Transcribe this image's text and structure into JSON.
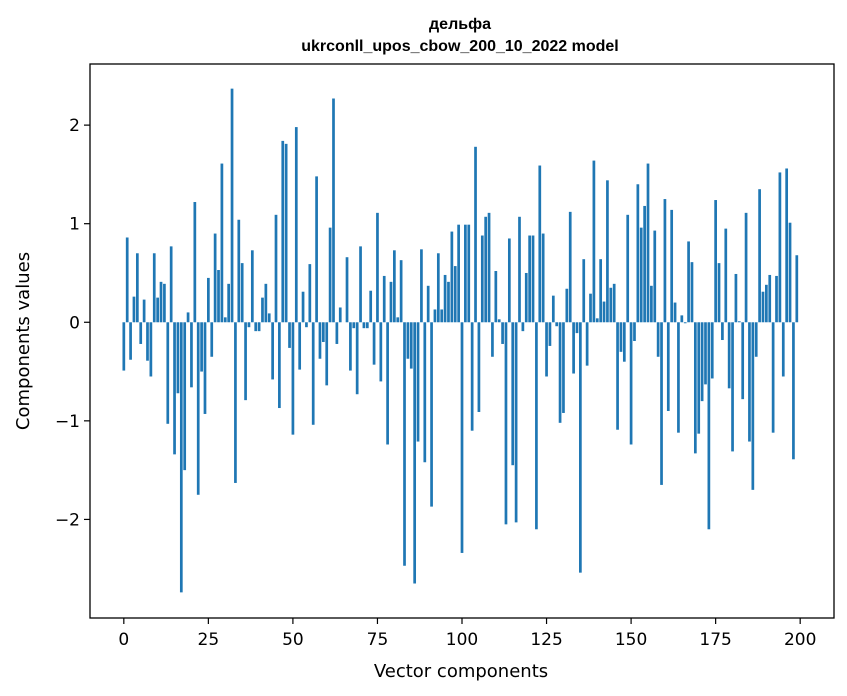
{
  "chart_data": {
    "type": "bar",
    "title": "дельфа",
    "subtitle": "ukrconll_upos_cbow_200_10_2022 model",
    "xlabel": "Vector components",
    "ylabel": "Components values",
    "xlim": [
      -10,
      210
    ],
    "ylim": [
      -3.0,
      2.62
    ],
    "xticks": [
      0,
      25,
      50,
      75,
      100,
      125,
      150,
      175,
      200
    ],
    "yticks": [
      -2,
      -1,
      0,
      1,
      2
    ],
    "ytick_labels": [
      "−2",
      "−1",
      "0",
      "1",
      "2"
    ],
    "grid": false,
    "bar_color": "#1f77b4",
    "values": [
      -0.49,
      0.86,
      -0.38,
      0.26,
      0.7,
      -0.22,
      0.23,
      -0.39,
      -0.55,
      0.7,
      0.25,
      0.41,
      0.39,
      -1.03,
      0.77,
      -1.34,
      -0.72,
      -2.74,
      -1.5,
      0.1,
      -0.66,
      1.22,
      -1.75,
      -0.5,
      -0.93,
      0.45,
      -0.35,
      0.9,
      0.53,
      1.61,
      0.05,
      0.39,
      2.37,
      -1.63,
      1.04,
      0.6,
      -0.79,
      -0.05,
      0.73,
      -0.09,
      -0.09,
      0.25,
      0.39,
      0.09,
      -0.58,
      1.09,
      -0.87,
      1.84,
      1.81,
      -0.26,
      -1.14,
      1.98,
      -0.48,
      0.31,
      -0.05,
      0.59,
      -1.04,
      1.48,
      -0.37,
      -0.2,
      -0.64,
      0.96,
      2.27,
      -0.22,
      0.15,
      0.0,
      0.66,
      -0.49,
      -0.06,
      -0.73,
      0.77,
      -0.06,
      -0.06,
      0.32,
      -0.43,
      1.11,
      -0.6,
      0.47,
      -1.24,
      0.41,
      0.73,
      0.05,
      0.63,
      -2.47,
      -0.37,
      -0.47,
      -2.65,
      -1.21,
      0.74,
      -1.42,
      0.37,
      -1.87,
      0.13,
      0.7,
      0.13,
      0.48,
      0.41,
      0.92,
      0.57,
      0.99,
      -2.34,
      0.99,
      0.99,
      -1.1,
      1.78,
      -0.91,
      0.88,
      1.07,
      1.11,
      -0.35,
      0.52,
      0.03,
      -0.22,
      -2.05,
      0.85,
      -1.45,
      -2.03,
      1.07,
      -0.09,
      0.5,
      0.88,
      0.88,
      -2.1,
      1.59,
      0.9,
      -0.55,
      -0.24,
      0.27,
      -0.04,
      -1.02,
      -0.92,
      0.34,
      1.12,
      -0.52,
      -0.11,
      -2.54,
      0.64,
      -0.44,
      0.29,
      1.64,
      0.04,
      0.64,
      0.21,
      1.44,
      0.35,
      0.39,
      -1.09,
      -0.3,
      -0.4,
      1.09,
      -1.24,
      -0.19,
      1.4,
      0.96,
      1.18,
      1.61,
      0.37,
      0.93,
      -0.35,
      -1.65,
      1.25,
      -0.9,
      1.14,
      0.2,
      -1.12,
      0.07,
      -0.01,
      0.82,
      0.61,
      -1.33,
      -1.13,
      -0.8,
      -0.63,
      -2.1,
      -0.57,
      1.24,
      0.6,
      -0.18,
      0.95,
      -0.67,
      -1.31,
      0.49,
      0.01,
      -0.78,
      1.11,
      -1.21,
      -1.7,
      -0.35,
      1.35,
      0.31,
      0.38,
      0.48,
      -1.12,
      0.47,
      1.52,
      -0.55,
      1.56,
      1.01,
      -1.39,
      0.68
    ]
  }
}
